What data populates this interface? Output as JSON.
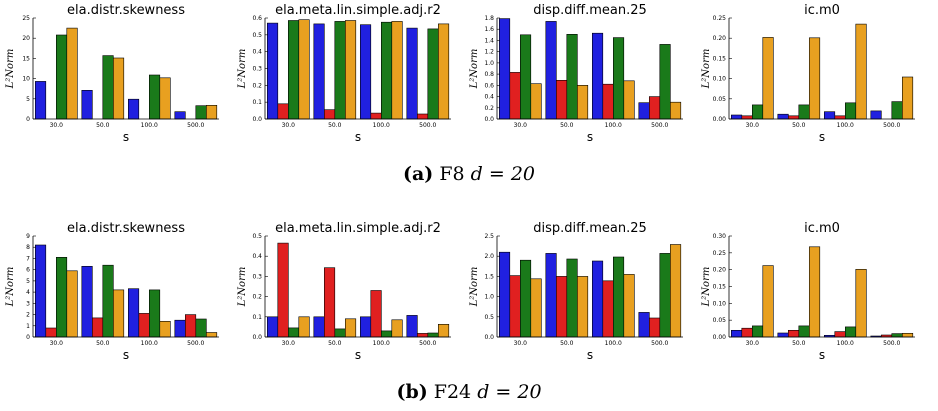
{
  "captions": [
    {
      "tag": "(a)",
      "text": "F8",
      "math": "d = 20"
    },
    {
      "tag": "(b)",
      "text": "F24",
      "math": "d = 20"
    }
  ],
  "colors": [
    "#2020e0",
    "#e02020",
    "#1a7a1a",
    "#e8a020"
  ],
  "chart_data": [
    {
      "type": "bar",
      "title": "ela.distr.skewness",
      "xlabel": "s",
      "ylabel": "L²Norm",
      "categories": [
        "30.0",
        "50.0",
        "100.0",
        "500.0"
      ],
      "ylim": [
        0,
        25
      ],
      "yticks": [
        0,
        5,
        10,
        15,
        20,
        25
      ],
      "series": [
        {
          "values": [
            9.3,
            7.1,
            4.9,
            1.8
          ]
        },
        {
          "values": [
            0,
            0,
            0,
            0
          ]
        },
        {
          "values": [
            20.8,
            15.7,
            10.9,
            3.3
          ]
        },
        {
          "values": [
            22.5,
            15.1,
            10.2,
            3.4
          ]
        }
      ]
    },
    {
      "type": "bar",
      "title": "ela.meta.lin.simple.adj.r2",
      "xlabel": "s",
      "ylabel": "L²Norm",
      "categories": [
        "30.0",
        "50.0",
        "100.0",
        "500.0"
      ],
      "ylim": [
        0,
        0.6
      ],
      "yticks": [
        0,
        0.1,
        0.2,
        0.3,
        0.4,
        0.5,
        0.6
      ],
      "series": [
        {
          "values": [
            0.57,
            0.565,
            0.56,
            0.54
          ]
        },
        {
          "values": [
            0.09,
            0.055,
            0.035,
            0.03
          ]
        },
        {
          "values": [
            0.585,
            0.58,
            0.575,
            0.535
          ]
        },
        {
          "values": [
            0.59,
            0.585,
            0.58,
            0.565
          ]
        }
      ]
    },
    {
      "type": "bar",
      "title": "disp.diff.mean.25",
      "xlabel": "s",
      "ylabel": "L²Norm",
      "categories": [
        "30.0",
        "50.0",
        "100.0",
        "500.0"
      ],
      "ylim": [
        0,
        1.8
      ],
      "yticks": [
        0,
        0.2,
        0.4,
        0.6,
        0.8,
        1.0,
        1.2,
        1.4,
        1.6,
        1.8
      ],
      "series": [
        {
          "values": [
            1.79,
            1.74,
            1.53,
            0.29
          ]
        },
        {
          "values": [
            0.83,
            0.69,
            0.62,
            0.4
          ]
        },
        {
          "values": [
            1.5,
            1.51,
            1.45,
            1.33
          ]
        },
        {
          "values": [
            0.63,
            0.6,
            0.68,
            0.3
          ]
        }
      ]
    },
    {
      "type": "bar",
      "title": "ic.m0",
      "xlabel": "s",
      "ylabel": "L²Norm",
      "categories": [
        "30.0",
        "50.0",
        "100.0",
        "500.0"
      ],
      "ylim": [
        0,
        0.25
      ],
      "yticks": [
        0,
        0.05,
        0.1,
        0.15,
        0.2,
        0.25
      ],
      "series": [
        {
          "values": [
            0.01,
            0.012,
            0.018,
            0.02
          ]
        },
        {
          "values": [
            0.008,
            0.008,
            0.008,
            0
          ]
        },
        {
          "values": [
            0.035,
            0.035,
            0.04,
            0.043
          ]
        },
        {
          "values": [
            0.202,
            0.201,
            0.235,
            0.104
          ]
        }
      ]
    },
    {
      "type": "bar",
      "title": "ela.distr.skewness",
      "xlabel": "s",
      "ylabel": "L²Norm",
      "categories": [
        "30.0",
        "50.0",
        "100.0",
        "500.0"
      ],
      "ylim": [
        0,
        9
      ],
      "yticks": [
        0,
        1,
        2,
        3,
        4,
        5,
        6,
        7,
        8,
        9
      ],
      "series": [
        {
          "values": [
            8.2,
            6.3,
            4.3,
            1.5
          ]
        },
        {
          "values": [
            0.8,
            1.7,
            2.1,
            2.0
          ]
        },
        {
          "values": [
            7.1,
            6.4,
            4.2,
            1.6
          ]
        },
        {
          "values": [
            5.9,
            4.2,
            1.4,
            0.4
          ]
        }
      ]
    },
    {
      "type": "bar",
      "title": "ela.meta.lin.simple.adj.r2",
      "xlabel": "s",
      "ylabel": "L²Norm",
      "categories": [
        "30.0",
        "50.0",
        "100.0",
        "500.0"
      ],
      "ylim": [
        0,
        0.5
      ],
      "yticks": [
        0,
        0.1,
        0.2,
        0.3,
        0.4,
        0.5
      ],
      "series": [
        {
          "values": [
            0.1,
            0.1,
            0.1,
            0.107
          ]
        },
        {
          "values": [
            0.465,
            0.343,
            0.23,
            0.018
          ]
        },
        {
          "values": [
            0.045,
            0.04,
            0.03,
            0.02
          ]
        },
        {
          "values": [
            0.1,
            0.09,
            0.085,
            0.063
          ]
        }
      ]
    },
    {
      "type": "bar",
      "title": "disp.diff.mean.25",
      "xlabel": "s",
      "ylabel": "L²Norm",
      "categories": [
        "30.0",
        "50.0",
        "100.0",
        "500.0"
      ],
      "ylim": [
        0,
        2.5
      ],
      "yticks": [
        0,
        0.5,
        1.0,
        1.5,
        2.0,
        2.5
      ],
      "series": [
        {
          "values": [
            2.1,
            2.07,
            1.88,
            0.61
          ]
        },
        {
          "values": [
            1.52,
            1.5,
            1.39,
            0.47
          ]
        },
        {
          "values": [
            1.9,
            1.93,
            1.98,
            2.07
          ]
        },
        {
          "values": [
            1.44,
            1.5,
            1.55,
            2.29
          ]
        }
      ]
    },
    {
      "type": "bar",
      "title": "ic.m0",
      "xlabel": "s",
      "ylabel": "L²Norm",
      "categories": [
        "30.0",
        "50.0",
        "100.0",
        "500.0"
      ],
      "ylim": [
        0,
        0.3
      ],
      "yticks": [
        0,
        0.05,
        0.1,
        0.15,
        0.2,
        0.25,
        0.3
      ],
      "series": [
        {
          "values": [
            0.02,
            0.012,
            0.005,
            0.003
          ]
        },
        {
          "values": [
            0.026,
            0.02,
            0.016,
            0.006
          ]
        },
        {
          "values": [
            0.033,
            0.033,
            0.03,
            0.01
          ]
        },
        {
          "values": [
            0.212,
            0.268,
            0.201,
            0.011
          ]
        }
      ]
    }
  ]
}
